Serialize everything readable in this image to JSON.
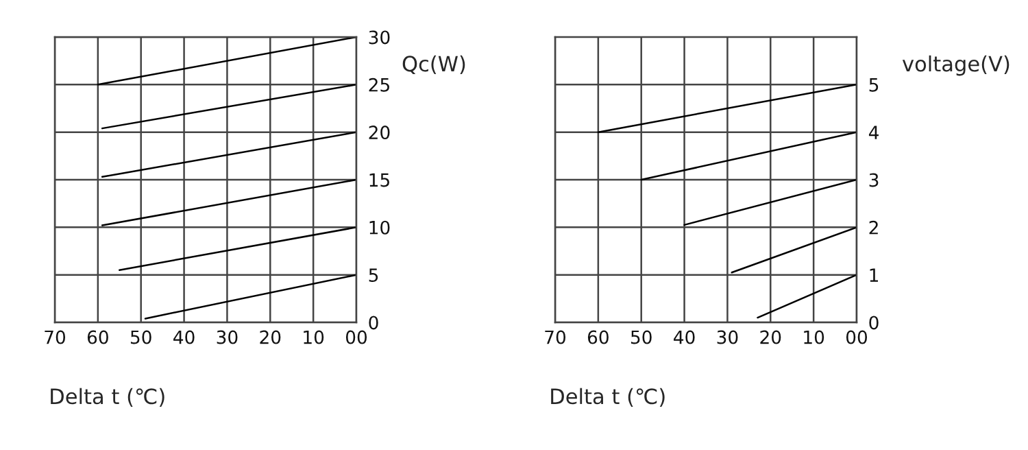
{
  "chart_data": [
    {
      "type": "line",
      "xlabel": "Delta t (℃)",
      "ylabel": "Qc(W)",
      "xlim": [
        70,
        0
      ],
      "xticks": [
        70,
        60,
        50,
        40,
        30,
        20,
        10,
        {
          "value": 0,
          "label": "00"
        }
      ],
      "ylim": [
        0,
        30
      ],
      "yticks": [
        0,
        5,
        10,
        15,
        20,
        25,
        30
      ],
      "grid": true,
      "series": [
        {
          "color": "#000000",
          "x": [
            49,
            0
          ],
          "values": [
            0.4,
            5
          ]
        },
        {
          "color": "#000000",
          "x": [
            55,
            0
          ],
          "values": [
            5.5,
            10
          ]
        },
        {
          "color": "#000000",
          "x": [
            59,
            0
          ],
          "values": [
            10.2,
            15
          ]
        },
        {
          "color": "#000000",
          "x": [
            59,
            0
          ],
          "values": [
            15.3,
            20
          ]
        },
        {
          "color": "#000000",
          "x": [
            59,
            0
          ],
          "values": [
            20.4,
            25
          ]
        },
        {
          "color": "#000000",
          "x": [
            60,
            0
          ],
          "values": [
            25,
            30
          ]
        }
      ]
    },
    {
      "type": "line",
      "xlabel": "Delta t (℃)",
      "ylabel": "voltage(V)",
      "xlim": [
        70,
        0
      ],
      "xticks": [
        70,
        60,
        50,
        40,
        30,
        20,
        10,
        {
          "value": 0,
          "label": "00"
        }
      ],
      "ylim": [
        0,
        6
      ],
      "yticks": [
        0,
        1,
        2,
        3,
        4,
        5
      ],
      "grid": true,
      "series": [
        {
          "color": "#000000",
          "x": [
            23,
            0
          ],
          "values": [
            0.1,
            1
          ]
        },
        {
          "color": "#000000",
          "x": [
            29,
            0
          ],
          "values": [
            1.05,
            2
          ]
        },
        {
          "color": "#000000",
          "x": [
            40,
            0
          ],
          "values": [
            2.05,
            3
          ]
        },
        {
          "color": "#000000",
          "x": [
            50,
            0
          ],
          "values": [
            3,
            4
          ]
        },
        {
          "color": "#000000",
          "x": [
            60,
            0
          ],
          "values": [
            4,
            5
          ]
        }
      ]
    }
  ]
}
